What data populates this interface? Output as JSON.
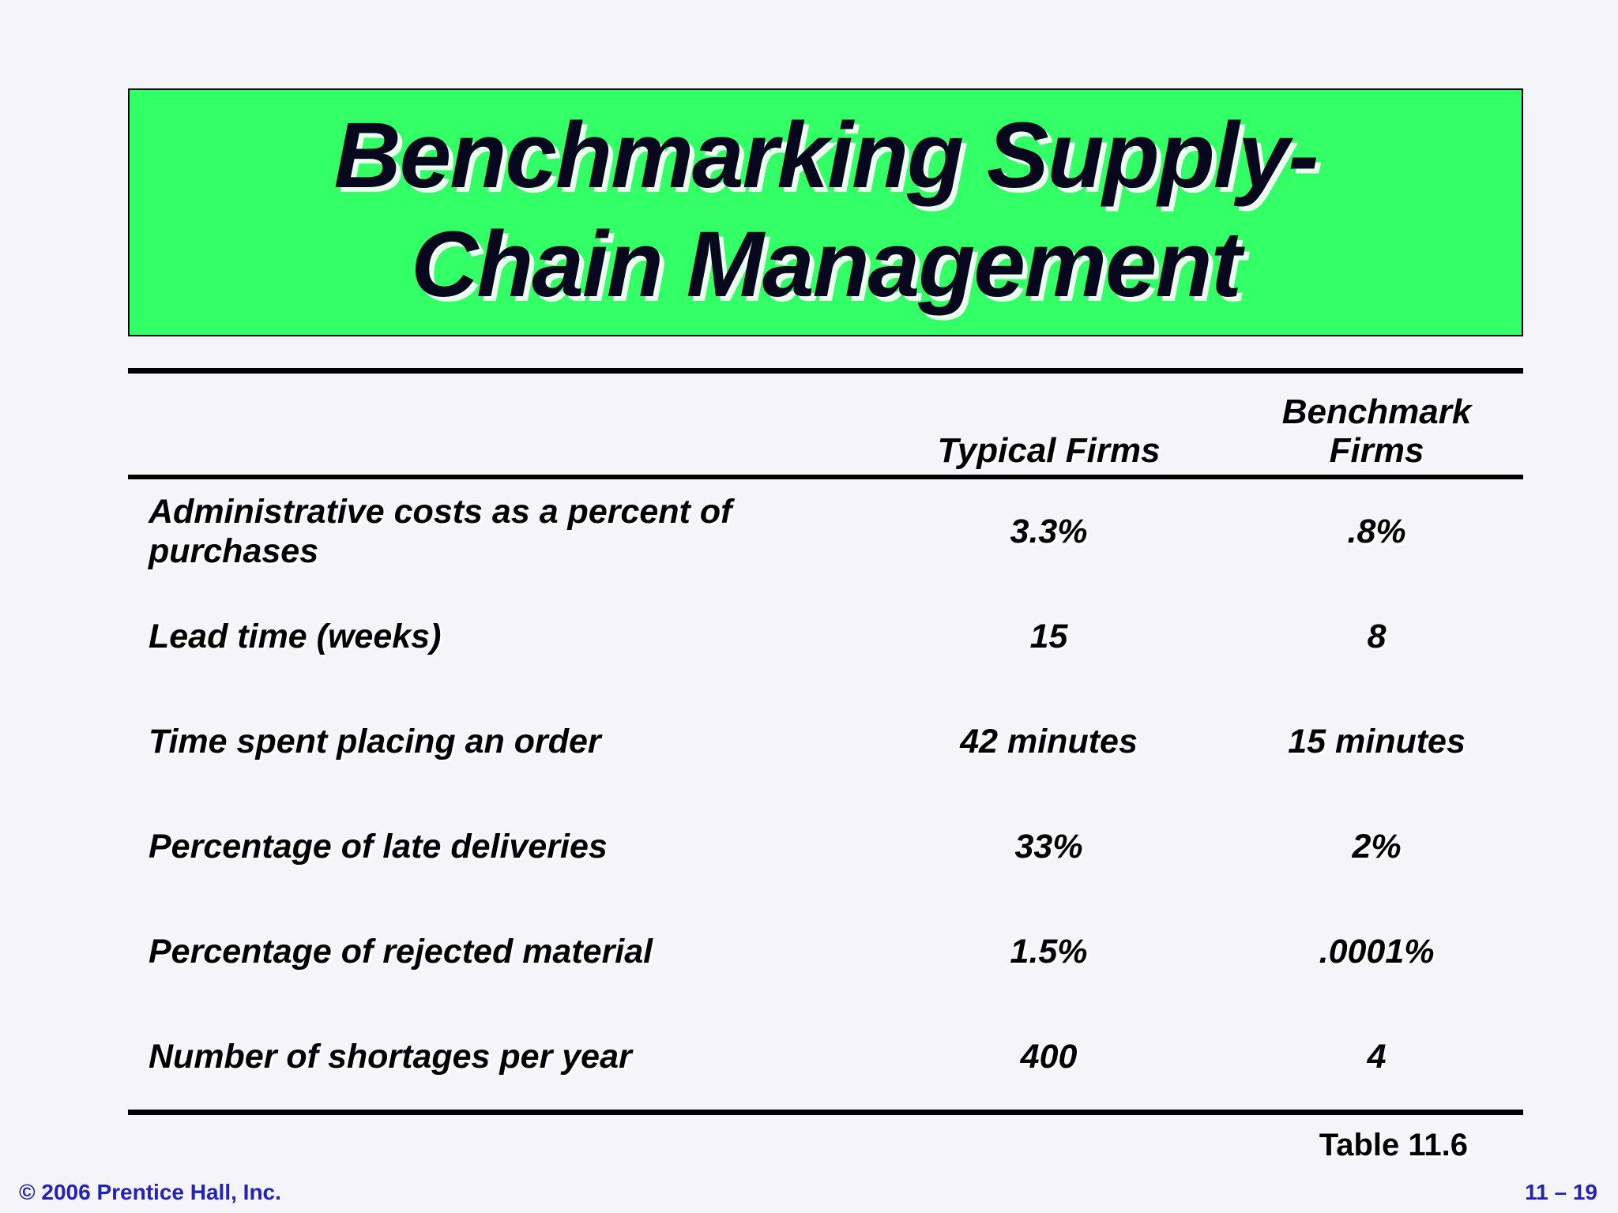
{
  "title": {
    "line1": "Benchmarking Supply-",
    "line2": "Chain Management"
  },
  "table": {
    "columns": [
      "Typical Firms",
      "Benchmark Firms"
    ],
    "rows": [
      {
        "label": "Administrative costs as a percent of purchases",
        "typical": "3.3%",
        "benchmark": ".8%"
      },
      {
        "label": "Lead time (weeks)",
        "typical": "15",
        "benchmark": "8"
      },
      {
        "label": "Time spent placing an order",
        "typical": "42 minutes",
        "benchmark": "15 minutes"
      },
      {
        "label": "Percentage of late deliveries",
        "typical": "33%",
        "benchmark": "2%"
      },
      {
        "label": "Percentage of rejected material",
        "typical": "1.5%",
        "benchmark": ".0001%"
      },
      {
        "label": "Number of shortages per year",
        "typical": "400",
        "benchmark": "4"
      }
    ],
    "caption": "Table 11.6"
  },
  "footer": {
    "copyright": "© 2006 Prentice Hall, Inc.",
    "page": "11 – 19"
  },
  "colors": {
    "banner_green": "#33ff66",
    "footer_blue": "#2222bb",
    "background": "#f4f4f9"
  }
}
